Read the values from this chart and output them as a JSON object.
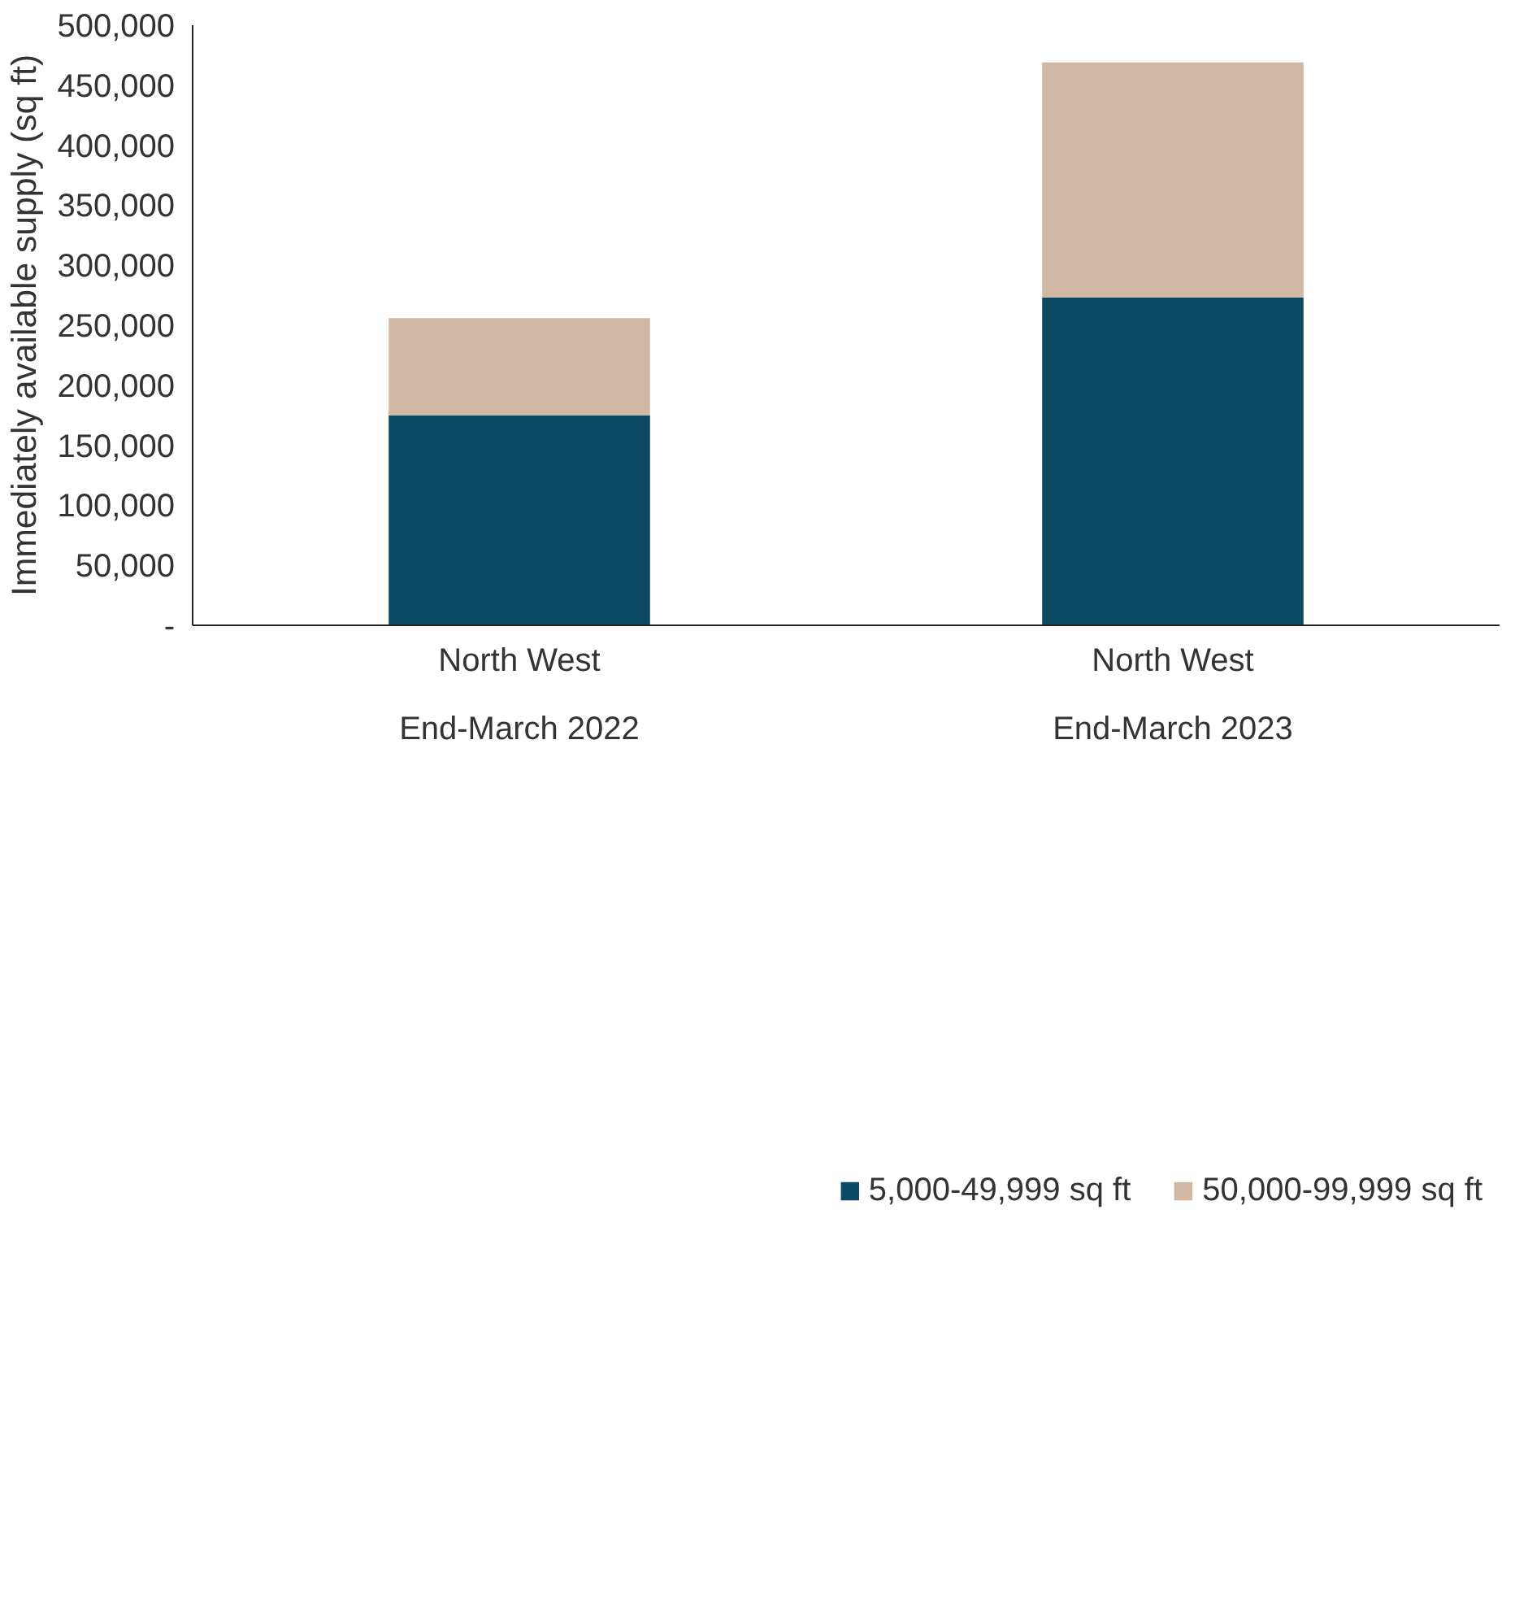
{
  "chart_data": {
    "type": "bar",
    "ylabel": "Immediately available supply (sq ft)",
    "categories": [
      "North West\nEnd-March 2022",
      "North West\nEnd-March 2023"
    ],
    "stacked": true,
    "series": [
      {
        "name": "5,000-49,999 sq ft",
        "color": "#0b4861",
        "values": [
          175000,
          273000
        ]
      },
      {
        "name": "50,000-99,999 sq ft",
        "color": "#d1b8a5",
        "values": [
          81000,
          196000
        ]
      }
    ],
    "ylim": [
      0,
      500000
    ],
    "yticks": [
      {
        "value": 0,
        "label": "-"
      },
      {
        "value": 50000,
        "label": "50,000"
      },
      {
        "value": 100000,
        "label": "100,000"
      },
      {
        "value": 150000,
        "label": "150,000"
      },
      {
        "value": 200000,
        "label": "200,000"
      },
      {
        "value": 250000,
        "label": "250,000"
      },
      {
        "value": 300000,
        "label": "300,000"
      },
      {
        "value": 350000,
        "label": "350,000"
      },
      {
        "value": 400000,
        "label": "400,000"
      },
      {
        "value": 450000,
        "label": "450,000"
      },
      {
        "value": 500000,
        "label": "500,000"
      }
    ],
    "grid": false,
    "legend": "bottom"
  }
}
